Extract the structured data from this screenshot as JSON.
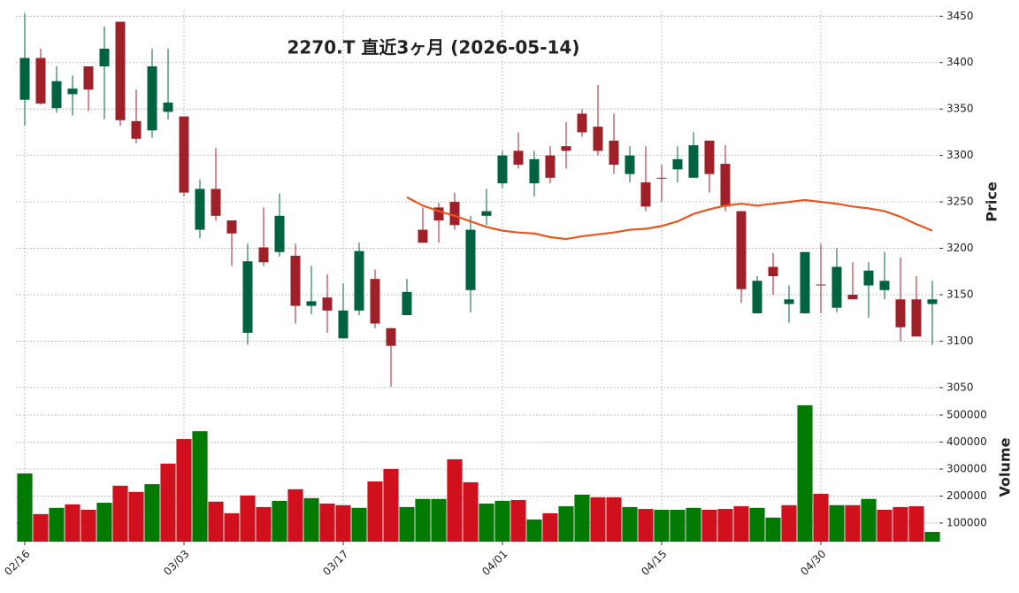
{
  "chart_data": {
    "type": "candlestick",
    "title": "2270.T  直近3ヶ月  (2026-05-14)",
    "categories": [
      "02/16",
      null,
      null,
      null,
      null,
      null,
      null,
      null,
      null,
      null,
      "03/03",
      null,
      null,
      null,
      null,
      null,
      null,
      null,
      null,
      null,
      "03/17",
      null,
      null,
      null,
      null,
      null,
      null,
      null,
      null,
      null,
      "04/01",
      null,
      null,
      null,
      null,
      null,
      null,
      null,
      null,
      null,
      "04/15",
      null,
      null,
      null,
      null,
      null,
      null,
      null,
      null,
      null,
      "04/30",
      null,
      null,
      null,
      null,
      null,
      null,
      null
    ],
    "open": [
      3360,
      3405,
      3351,
      3366,
      3396,
      3396,
      3444,
      3337,
      3327,
      3347,
      3342,
      3220,
      3264,
      3230,
      3109,
      3201,
      3196,
      3192,
      3138,
      3147,
      3103,
      3133,
      3167,
      3114,
      3128,
      3220,
      3244,
      3250,
      3155,
      3235,
      3270,
      3305,
      3270,
      3300,
      3310,
      3345,
      3331,
      3316,
      3280,
      3271,
      3276,
      3285,
      3276,
      3316,
      3291,
      3240,
      3130,
      3180,
      3140,
      3130,
      3161,
      3136,
      3150,
      3160,
      3155,
      3145,
      3145,
      3140
    ],
    "high": [
      3453,
      3415,
      3396,
      3386,
      3396,
      3439,
      3444,
      3371,
      3415,
      3415,
      3342,
      3274,
      3308,
      3230,
      3205,
      3244,
      3259,
      3205,
      3181,
      3172,
      3162,
      3206,
      3177,
      3114,
      3167,
      3244,
      3249,
      3260,
      3235,
      3264,
      3305,
      3325,
      3305,
      3310,
      3336,
      3350,
      3376,
      3345,
      3310,
      3310,
      3290,
      3310,
      3325,
      3316,
      3311,
      3240,
      3170,
      3195,
      3160,
      3196,
      3205,
      3200,
      3185,
      3185,
      3196,
      3190,
      3170,
      3165
    ],
    "low": [
      3332,
      3355,
      3346,
      3343,
      3348,
      3339,
      3332,
      3313,
      3319,
      3339,
      3256,
      3211,
      3230,
      3181,
      3096,
      3181,
      3191,
      3119,
      3129,
      3109,
      3103,
      3128,
      3114,
      3051,
      3128,
      3206,
      3206,
      3220,
      3131,
      3225,
      3265,
      3286,
      3256,
      3270,
      3286,
      3320,
      3300,
      3280,
      3271,
      3240,
      3250,
      3271,
      3276,
      3260,
      3240,
      3141,
      3130,
      3150,
      3120,
      3130,
      3130,
      3131,
      3145,
      3125,
      3145,
      3100,
      3105,
      3096
    ],
    "close": [
      3405,
      3356,
      3380,
      3372,
      3371,
      3415,
      3338,
      3318,
      3396,
      3357,
      3260,
      3264,
      3235,
      3216,
      3186,
      3185,
      3235,
      3138,
      3143,
      3133,
      3133,
      3197,
      3119,
      3095,
      3153,
      3206,
      3230,
      3225,
      3220,
      3240,
      3300,
      3290,
      3296,
      3276,
      3305,
      3325,
      3305,
      3290,
      3300,
      3245,
      3275,
      3296,
      3311,
      3280,
      3245,
      3156,
      3165,
      3170,
      3145,
      3196,
      3160,
      3180,
      3145,
      3176,
      3165,
      3115,
      3105,
      3145
    ],
    "up_color": "#006340",
    "down_color": "#a0202a",
    "ylim": [
      3048,
      3456
    ],
    "yticks": [
      3050,
      3100,
      3150,
      3200,
      3250,
      3300,
      3350,
      3400,
      3450
    ],
    "ylabel": "Price",
    "grid": true,
    "ma": {
      "color": "#e8561c",
      "values": [
        null,
        null,
        null,
        null,
        null,
        null,
        null,
        null,
        null,
        null,
        null,
        null,
        null,
        null,
        null,
        null,
        null,
        null,
        null,
        null,
        null,
        null,
        null,
        null,
        3255,
        3246,
        3240,
        3235,
        3229,
        3223,
        3219,
        3217,
        3216,
        3212,
        3210,
        3213,
        3215,
        3217,
        3220,
        3221,
        3224,
        3229,
        3237,
        3242,
        3246,
        3248,
        3246,
        3248,
        3250,
        3252,
        3250,
        3248,
        3245,
        3243,
        3240,
        3234,
        3226,
        3219
      ]
    },
    "volume": {
      "values": [
        283600,
        133000,
        156000,
        169000,
        149000,
        175000,
        238000,
        215000,
        244000,
        320000,
        411000,
        440000,
        179000,
        136000,
        202000,
        159000,
        182000,
        225000,
        192000,
        172000,
        166000,
        156000,
        254000,
        300000,
        159000,
        189000,
        189000,
        336000,
        251000,
        172000,
        182000,
        185000,
        113000,
        136000,
        162000,
        205000,
        195000,
        195000,
        159000,
        152000,
        149000,
        149000,
        156000,
        149000,
        152000,
        162000,
        156000,
        120000,
        166000,
        536000,
        208000,
        166000,
        166000,
        189000,
        149000,
        159000,
        162000,
        67000
      ],
      "up_color": "#007a00",
      "down_color": "#d0101c",
      "ylim": [
        31000,
        595000
      ],
      "yticks": [
        100000,
        200000,
        300000,
        400000,
        500000
      ],
      "ylabel": "Volume"
    }
  }
}
